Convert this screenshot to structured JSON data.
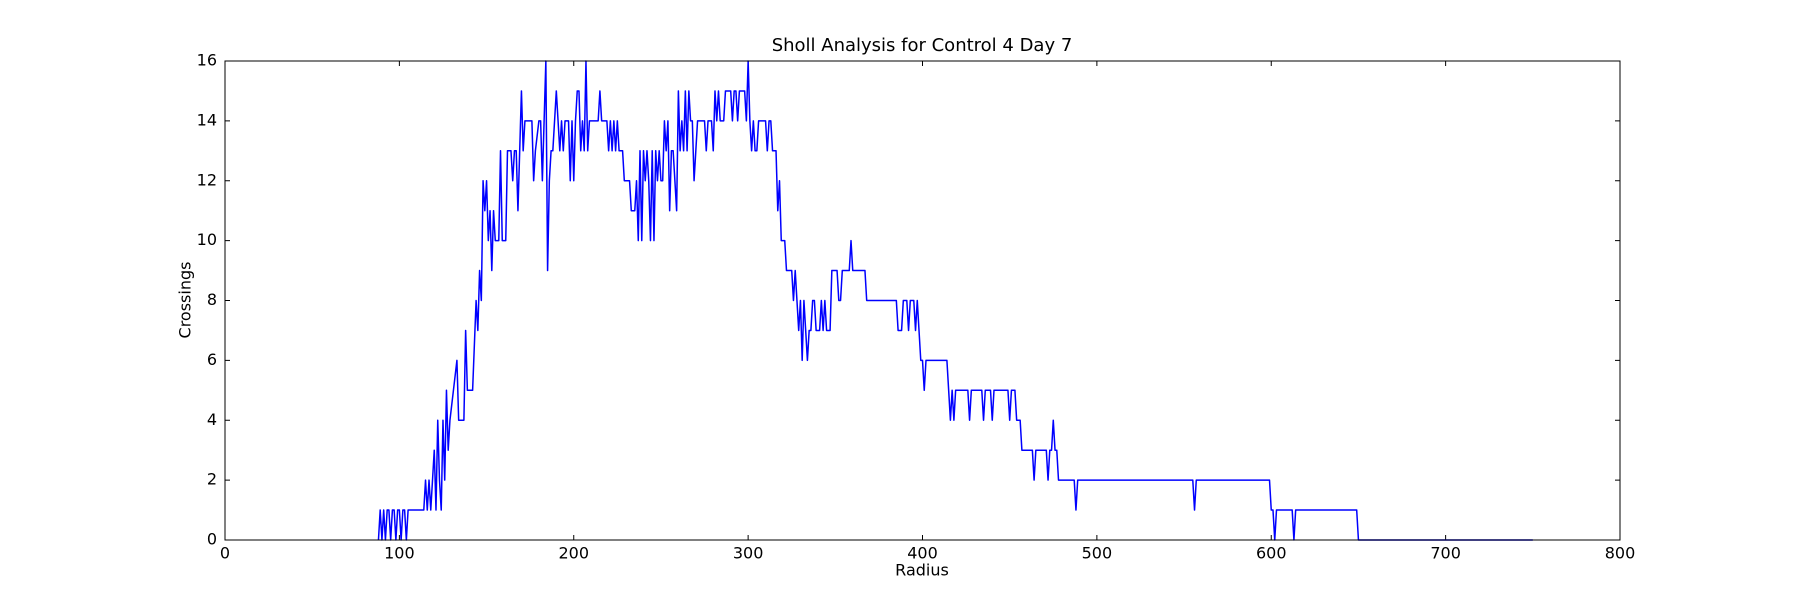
{
  "chart_data": {
    "type": "line",
    "title": "Sholl Analysis for Control 4 Day 7",
    "x_label": "Radius",
    "y_label": "Crossings",
    "color": "#0000ff",
    "x": [
      88,
      89,
      90,
      91,
      92,
      93,
      94,
      95,
      96,
      97,
      98,
      99,
      100,
      101,
      102,
      103,
      104,
      105,
      114,
      115,
      116,
      117,
      118,
      119,
      120,
      121,
      122,
      123,
      124,
      125,
      126,
      127,
      128,
      129,
      131,
      133,
      134,
      137,
      138,
      139,
      142,
      144,
      145,
      146,
      147,
      148,
      149,
      150,
      151,
      152,
      153,
      154,
      155,
      157,
      158,
      159,
      161,
      162,
      164,
      165,
      166,
      167,
      168,
      170,
      171,
      172,
      176,
      177,
      178,
      180,
      181,
      182,
      184,
      185,
      186,
      187,
      188,
      190,
      191,
      192,
      193,
      194,
      195,
      197,
      198,
      199,
      200,
      201,
      202,
      203,
      204,
      205,
      206,
      207,
      208,
      209,
      214,
      215,
      216,
      219,
      220,
      221,
      222,
      223,
      224,
      225,
      226,
      228,
      229,
      232,
      233,
      235,
      236,
      237,
      238,
      239,
      240,
      241,
      242,
      243,
      244,
      245,
      246,
      247,
      248,
      249,
      250,
      251,
      252,
      253,
      254,
      255,
      256,
      257,
      258,
      259,
      260,
      261,
      262,
      263,
      264,
      265,
      266,
      267,
      268,
      269,
      270,
      271,
      275,
      276,
      277,
      279,
      280,
      281,
      282,
      283,
      284,
      286,
      287,
      290,
      291,
      292,
      293,
      294,
      295,
      298,
      299,
      300,
      301,
      302,
      303,
      304,
      305,
      306,
      310,
      311,
      312,
      313,
      314,
      316,
      317,
      318,
      319,
      321,
      322,
      325,
      326,
      327,
      328,
      329,
      330,
      331,
      332,
      333,
      334,
      335,
      336,
      337,
      338,
      339,
      341,
      342,
      343,
      344,
      345,
      347,
      348,
      351,
      352,
      353,
      354,
      358,
      359,
      360,
      367,
      368,
      385,
      386,
      388,
      389,
      391,
      392,
      393,
      395,
      396,
      397,
      398,
      399,
      400,
      401,
      402,
      414,
      415,
      416,
      417,
      418,
      419,
      426,
      427,
      428,
      434,
      435,
      436,
      439,
      440,
      441,
      449,
      450,
      451,
      453,
      454,
      456,
      457,
      463,
      464,
      465,
      471,
      472,
      473,
      474,
      475,
      476,
      477,
      478,
      487,
      488,
      489,
      555,
      556,
      557,
      599,
      600,
      601,
      602,
      603,
      612,
      613,
      614,
      649,
      650,
      750
    ],
    "values": [
      0,
      1,
      0,
      1,
      0,
      1,
      1,
      0,
      1,
      1,
      0,
      1,
      1,
      0,
      1,
      1,
      0,
      1,
      1,
      2,
      1,
      2,
      1,
      2,
      3,
      1,
      4,
      2,
      1,
      4,
      2,
      5,
      3,
      4,
      5,
      6,
      4,
      4,
      7,
      5,
      5,
      8,
      7,
      9,
      8,
      12,
      11,
      12,
      10,
      11,
      9,
      11,
      10,
      10,
      13,
      10,
      10,
      13,
      13,
      12,
      13,
      13,
      11,
      15,
      13,
      14,
      14,
      12,
      13,
      14,
      14,
      12,
      16,
      9,
      12,
      13,
      13,
      15,
      14,
      13,
      14,
      13,
      14,
      14,
      12,
      14,
      12,
      14,
      15,
      15,
      13,
      14,
      13,
      16,
      13,
      14,
      14,
      15,
      14,
      14,
      13,
      14,
      13,
      14,
      13,
      14,
      13,
      13,
      12,
      12,
      11,
      11,
      12,
      10,
      13,
      10,
      13,
      12,
      13,
      12,
      10,
      13,
      10,
      13,
      12,
      13,
      12,
      12,
      14,
      13,
      14,
      11,
      13,
      13,
      12,
      11,
      15,
      13,
      14,
      13,
      15,
      13,
      15,
      14,
      14,
      12,
      13,
      14,
      14,
      13,
      14,
      14,
      13,
      15,
      14,
      15,
      14,
      14,
      15,
      15,
      14,
      15,
      15,
      14,
      15,
      15,
      14,
      16,
      14,
      13,
      14,
      13,
      13,
      14,
      14,
      13,
      14,
      14,
      13,
      13,
      11,
      12,
      10,
      10,
      9,
      9,
      8,
      9,
      8,
      7,
      8,
      6,
      8,
      7,
      6,
      7,
      7,
      8,
      8,
      7,
      7,
      8,
      7,
      8,
      7,
      7,
      9,
      9,
      8,
      8,
      9,
      9,
      10,
      9,
      9,
      8,
      8,
      7,
      7,
      8,
      8,
      7,
      8,
      8,
      7,
      8,
      7,
      6,
      6,
      5,
      6,
      6,
      5,
      4,
      5,
      4,
      5,
      5,
      4,
      5,
      5,
      4,
      5,
      5,
      4,
      5,
      5,
      4,
      5,
      5,
      4,
      4,
      3,
      3,
      2,
      3,
      3,
      2,
      3,
      3,
      4,
      3,
      3,
      2,
      2,
      1,
      2,
      2,
      1,
      2,
      2,
      1,
      1,
      0,
      1,
      1,
      0,
      1,
      1,
      0,
      0
    ],
    "xlim": [
      0,
      800
    ],
    "ylim": [
      0,
      16
    ],
    "xticks": [
      0,
      100,
      200,
      300,
      400,
      500,
      600,
      700,
      800
    ],
    "yticks": [
      0,
      2,
      4,
      6,
      8,
      10,
      12,
      14,
      16
    ]
  }
}
